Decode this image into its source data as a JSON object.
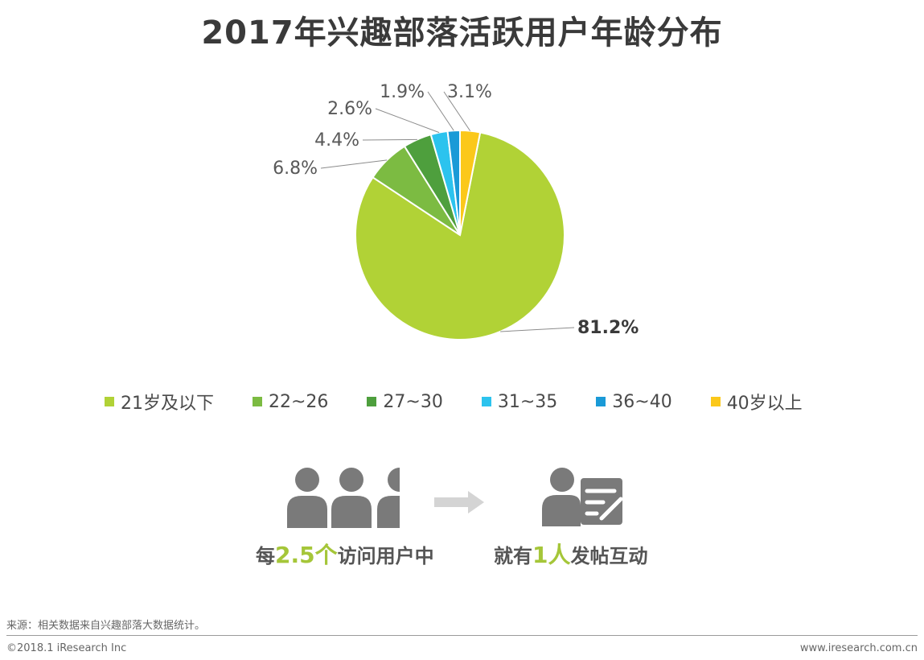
{
  "title": "2017年兴趣部落活跃用户年龄分布",
  "chart_data": {
    "type": "pie",
    "title": "2017年兴趣部落活跃用户年龄分布",
    "slices": [
      {
        "label": "21岁及以下",
        "value": 81.2,
        "display": "81.2%",
        "color": "#b1d236"
      },
      {
        "label": "22~26",
        "value": 6.8,
        "display": "6.8%",
        "color": "#7cbb42"
      },
      {
        "label": "27~30",
        "value": 4.4,
        "display": "4.4%",
        "color": "#4e9f3d"
      },
      {
        "label": "31~35",
        "value": 2.6,
        "display": "2.6%",
        "color": "#2cc3ee"
      },
      {
        "label": "36~40",
        "value": 1.9,
        "display": "1.9%",
        "color": "#1a9ad7"
      },
      {
        "label": "40岁以上",
        "value": 3.1,
        "display": "3.1%",
        "color": "#fbc81a"
      }
    ],
    "legend_position": "bottom"
  },
  "stats": {
    "left_pre": "每",
    "left_num": "2.5个",
    "left_post": "访问用户中",
    "right_pre": "就有",
    "right_num": "1人",
    "right_post": "发帖互动"
  },
  "icons": {
    "people": "people-group-icon",
    "arrow": "arrow-right-icon",
    "poster": "user-posting-icon"
  },
  "footer": {
    "source": "来源：相关数据来自兴趣部落大数据统计。",
    "copyright": "©2018.1 iResearch Inc",
    "website": "www.iresearch.com.cn"
  }
}
